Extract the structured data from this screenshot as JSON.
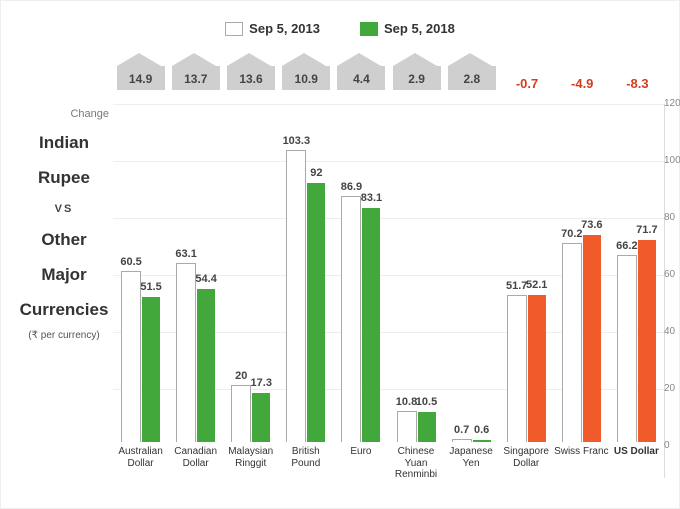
{
  "legend": {
    "a": {
      "label": "Sep 5, 2013",
      "fill": "#ffffff",
      "border": "#aaaaaa"
    },
    "b": {
      "label": "Sep 5, 2018",
      "fill_pos": "#43a83c",
      "fill_neg": "#f15a29"
    }
  },
  "sidebar": {
    "change_label": "Change",
    "title1": "Indian",
    "title2": "Rupee",
    "vs": "VS",
    "title3": "Other",
    "title4": "Major",
    "title5": "Currencies",
    "sub": "(₹ per currency)"
  },
  "axis": {
    "ymin": 0,
    "ymax": 120,
    "step": 20
  },
  "data": [
    {
      "name": "Australian Dollar",
      "a": 60.5,
      "b": 51.5,
      "change": 14.9,
      "dir": "pos"
    },
    {
      "name": "Canadian Dollar",
      "a": 63.1,
      "b": 54.4,
      "change": 13.7,
      "dir": "pos"
    },
    {
      "name": "Malaysian Ringgit",
      "a": 20,
      "b": 17.3,
      "change": 13.6,
      "dir": "pos"
    },
    {
      "name": "British Pound",
      "a": 103.3,
      "b": 92,
      "change": 10.9,
      "dir": "pos"
    },
    {
      "name": "Euro",
      "a": 86.9,
      "b": 83.1,
      "change": 4.4,
      "dir": "pos"
    },
    {
      "name": "Chinese Yuan Renminbi",
      "a": 10.8,
      "b": 10.5,
      "change": 2.9,
      "dir": "pos"
    },
    {
      "name": "Japanese Yen",
      "a": 0.7,
      "b": 0.6,
      "change": 2.8,
      "dir": "pos"
    },
    {
      "name": "Singapore Dollar",
      "a": 51.7,
      "b": 52.1,
      "change": -0.7,
      "dir": "neg"
    },
    {
      "name": "Swiss Franc",
      "a": 70.2,
      "b": 73.6,
      "change": -4.9,
      "dir": "neg"
    },
    {
      "name": "US Dollar",
      "a": 66.2,
      "b": 71.7,
      "change": -8.3,
      "dir": "neg",
      "bold": true
    }
  ],
  "colors": {
    "change_pos_bg": "#cfcfcf",
    "change_pos_text": "#444444",
    "change_neg_text": "#d73c1e",
    "grid": "#eeeeee",
    "axis_text": "#888888"
  }
}
